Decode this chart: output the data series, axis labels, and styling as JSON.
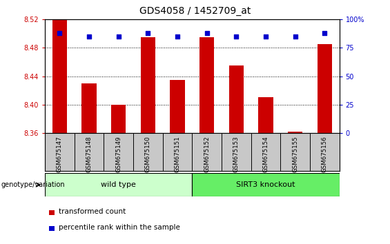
{
  "title": "GDS4058 / 1452709_at",
  "samples": [
    "GSM675147",
    "GSM675148",
    "GSM675149",
    "GSM675150",
    "GSM675151",
    "GSM675152",
    "GSM675153",
    "GSM675154",
    "GSM675155",
    "GSM675156"
  ],
  "transformed_count": [
    8.52,
    8.43,
    8.4,
    8.495,
    8.435,
    8.495,
    8.455,
    8.41,
    8.362,
    8.485
  ],
  "percentile_rank": [
    88,
    85,
    85,
    88,
    85,
    88,
    85,
    85,
    85,
    88
  ],
  "ylim": [
    8.36,
    8.52
  ],
  "y2lim": [
    0,
    100
  ],
  "yticks": [
    8.36,
    8.4,
    8.44,
    8.48,
    8.52
  ],
  "y2ticks": [
    0,
    25,
    50,
    75,
    100
  ],
  "bar_color": "#cc0000",
  "dot_color": "#0000cc",
  "wild_type_label": "wild type",
  "sirt3_label": "SIRT3 knockout",
  "genotype_label": "genotype/variation",
  "legend_bar_label": "transformed count",
  "legend_dot_label": "percentile rank within the sample",
  "wild_type_color": "#ccffcc",
  "sirt3_color": "#66ee66",
  "bar_width": 0.5,
  "tick_label_color_left": "#cc0000",
  "tick_label_color_right": "#0000cc",
  "xtick_bg_color": "#c8c8c8"
}
